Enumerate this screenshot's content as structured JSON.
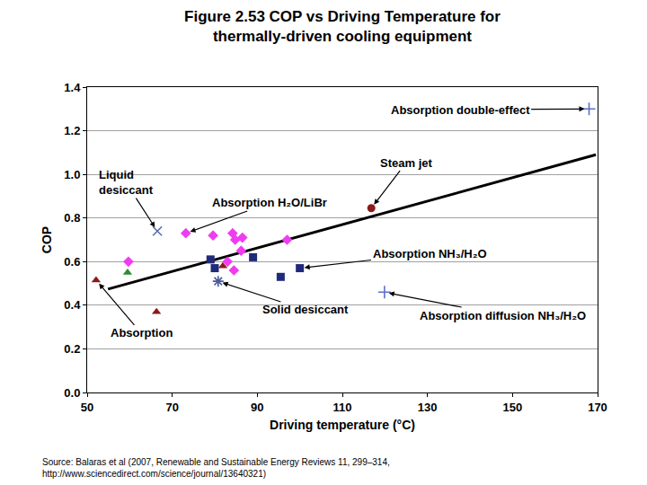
{
  "chart_data": {
    "type": "scatter",
    "title": "Figure 2.53 COP vs Driving Temperature for\nthermally-driven cooling equipment",
    "x_label": "Driving temperature (°C)",
    "y_label": "COP",
    "xlim": [
      50,
      170
    ],
    "xticks": [
      50,
      70,
      90,
      110,
      130,
      150,
      170
    ],
    "ylim": [
      0,
      1.4
    ],
    "yticks": [
      {
        "value": 0,
        "label": "0.0"
      },
      0.2,
      0.4,
      0.6,
      0.8,
      {
        "value": 1,
        "label": "1.0"
      },
      1.2,
      1.4
    ],
    "grid": "y",
    "series": [
      {
        "type": "line",
        "color": "#000000",
        "line_style": "solid",
        "x": [
          54.9,
          169.6
        ],
        "values": [
          0.474,
          1.09
        ]
      },
      {
        "marker": "triangle",
        "colors": [
          "#8b1a1a",
          "#2e8b2e",
          "#8b1a1a",
          "#8b1a1a"
        ],
        "x": [
          52.1,
          59.5,
          66.3,
          81.9
        ],
        "values": [
          0.515,
          0.55,
          0.37,
          0.58
        ]
      },
      {
        "marker": "diamond",
        "color": "#f03cf0",
        "x": [
          59.7,
          73.2,
          79.6,
          84.2,
          84.8,
          86.5,
          86.2,
          83.0,
          84.5,
          97.0
        ],
        "values": [
          0.6,
          0.73,
          0.72,
          0.73,
          0.7,
          0.71,
          0.65,
          0.6,
          0.56,
          0.7
        ]
      },
      {
        "marker": "square",
        "color": "#1f2a7a",
        "x": [
          79.0,
          80.0,
          89.0,
          95.5,
          100.0
        ],
        "values": [
          0.61,
          0.57,
          0.62,
          0.53,
          0.57
        ]
      },
      {
        "marker": "x",
        "color": "#5d6fa8",
        "x": [
          66.5
        ],
        "values": [
          0.74
        ]
      },
      {
        "marker": "asterisk",
        "color": "#4a5a9a",
        "x": [
          80.8
        ],
        "values": [
          0.51
        ]
      },
      {
        "marker": "circle",
        "color": "#8b1a1a",
        "x": [
          116.8
        ],
        "values": [
          0.845
        ]
      },
      {
        "marker": "plus",
        "color": "#5d6fcc",
        "x": [
          168.0
        ],
        "values": [
          1.3
        ]
      },
      {
        "marker": "plus",
        "color": "#5d6fcc",
        "x": [
          119.9
        ],
        "values": [
          0.46
        ]
      }
    ],
    "annotations": [
      {
        "text": "Absorption double-effect",
        "x": 168.0,
        "y": 1.3,
        "label_x": 137.7,
        "label_y": 1.297
      },
      {
        "text": "Steam jet",
        "x": 116.8,
        "y": 0.845,
        "label_x": 125.0,
        "label_y": 1.054
      },
      {
        "text": "Liquid\ndesiccant",
        "x": 66.5,
        "y": 0.74,
        "label_x": 59.1,
        "label_y": 0.963
      },
      {
        "text": "Absorption H₂O/LiBr",
        "x": 73.2,
        "y": 0.73,
        "label_x": 92.9,
        "label_y": 0.869
      },
      {
        "text": "Absorption NH₃/H₂O",
        "x": 100.0,
        "y": 0.57,
        "label_x": 130.5,
        "label_y": 0.638
      },
      {
        "text": "Solid desiccant",
        "x": 80.8,
        "y": 0.51,
        "label_x": 101.3,
        "label_y": 0.379
      },
      {
        "text": "Absorption diffusion NH₃/H₂O",
        "x": 119.9,
        "y": 0.46,
        "label_x": 147.8,
        "label_y": 0.354
      },
      {
        "text": "Absorption",
        "x": 52.1,
        "y": 0.515,
        "label_x": 62.7,
        "label_y": 0.272
      }
    ],
    "source": "Source: Balaras et al (2007, Renewable and Sustainable Energy Reviews 11, 299–314,\nhttp://www.sciencedirect.com/science/journal/13640321)"
  }
}
